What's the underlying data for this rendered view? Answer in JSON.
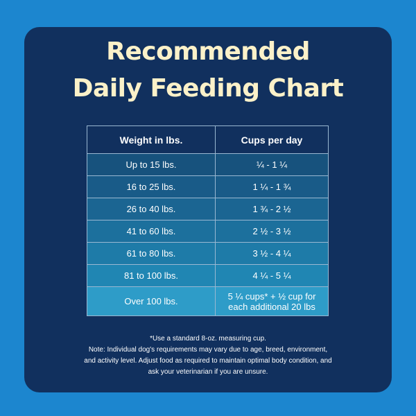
{
  "title": {
    "line1": "Recommended",
    "line2": "Daily Feeding Chart"
  },
  "table": {
    "headers": [
      "Weight in lbs.",
      "Cups per day"
    ],
    "rows": [
      {
        "weight": "Up to 15 lbs.",
        "cups": "¼ - 1 ¼",
        "color": "#17527d"
      },
      {
        "weight": "16 to 25 lbs.",
        "cups": "1 ¼ - 1 ¾",
        "color": "#195b88"
      },
      {
        "weight": "26 to 40 lbs.",
        "cups": "1 ¾ - 2 ½",
        "color": "#1b6592"
      },
      {
        "weight": "41 to 60 lbs.",
        "cups": "2 ½ - 3 ½",
        "color": "#1c709d"
      },
      {
        "weight": "61 to 80 lbs.",
        "cups": "3 ½ - 4 ¼",
        "color": "#1e7ba8"
      },
      {
        "weight": "81 to 100 lbs.",
        "cups": "4 ¼ - 5 ¼",
        "color": "#2086b3"
      },
      {
        "weight": "Over 100 lbs.",
        "cups": "5 ¼ cups* + ½ cup for each additional 20 lbs",
        "color": "#2e9cc8"
      }
    ]
  },
  "notes": {
    "footnote": "*Use a standard 8-oz. measuring cup.",
    "disclaimer_line1": "Note: Individual dog's requirements may vary due to age, breed, environment,",
    "disclaimer_line2": "and activity level. Adjust food as required to maintain optimal body condition, and",
    "disclaimer_line3": "ask your veterinarian if you are unsure."
  },
  "colors": {
    "background": "#1c86cf",
    "card": "#11305e",
    "title": "#fbf1c9",
    "table_border": "#9ab8d2"
  }
}
